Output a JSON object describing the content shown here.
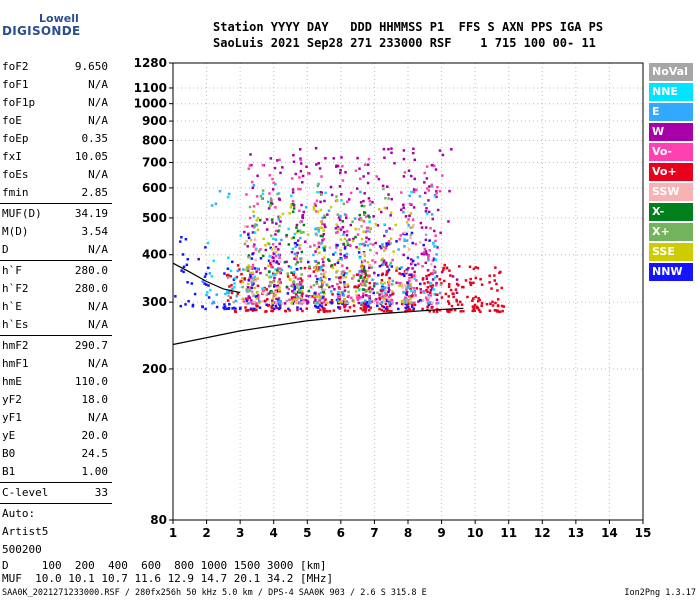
{
  "logo": {
    "line1": "Lowell",
    "line2": "DIGISONDE"
  },
  "header": {
    "line1": "Station YYYY DAY   DDD HHMMSS P1  FFS S AXN PPS IGA PS",
    "line2": "SaoLuis 2021 Sep28 271 233000 RSF    1 715 100 00- 11"
  },
  "params": {
    "group1": [
      {
        "k": "foF2",
        "v": "9.650"
      },
      {
        "k": "foF1",
        "v": "N/A"
      },
      {
        "k": "foF1p",
        "v": "N/A"
      },
      {
        "k": "foE",
        "v": "N/A"
      },
      {
        "k": "foEp",
        "v": "0.35"
      },
      {
        "k": "fxI",
        "v": "10.05"
      },
      {
        "k": "foEs",
        "v": "N/A"
      },
      {
        "k": "fmin",
        "v": "2.85"
      }
    ],
    "group2": [
      {
        "k": "MUF(D)",
        "v": "34.19"
      },
      {
        "k": "M(D)",
        "v": "3.54"
      },
      {
        "k": "D",
        "v": "N/A"
      }
    ],
    "group3": [
      {
        "k": "h`F",
        "v": "280.0"
      },
      {
        "k": "h`F2",
        "v": "280.0"
      },
      {
        "k": "h`E",
        "v": "N/A"
      },
      {
        "k": "h`Es",
        "v": "N/A"
      }
    ],
    "group4": [
      {
        "k": "hmF2",
        "v": "290.7"
      },
      {
        "k": "hmF1",
        "v": "N/A"
      },
      {
        "k": "hmE",
        "v": "110.0"
      },
      {
        "k": "yF2",
        "v": "18.0"
      },
      {
        "k": "yF1",
        "v": "N/A"
      },
      {
        "k": "yE",
        "v": "20.0"
      },
      {
        "k": "B0",
        "v": "24.5"
      },
      {
        "k": "B1",
        "v": "1.00"
      }
    ],
    "group5": [
      {
        "k": "C-level",
        "v": "33"
      }
    ],
    "auto": [
      "Auto:",
      "Artist5",
      "500200"
    ]
  },
  "legend": [
    {
      "label": "NoVal",
      "color": "#a6a6a6"
    },
    {
      "label": "NNE",
      "color": "#00e5ff"
    },
    {
      "label": "E",
      "color": "#33a8ff"
    },
    {
      "label": "W",
      "color": "#a800a8"
    },
    {
      "label": "Vo-",
      "color": "#ff40b0"
    },
    {
      "label": "Vo+",
      "color": "#e8001c"
    },
    {
      "label": "SSW",
      "color": "#f7b3b3"
    },
    {
      "label": "X-",
      "color": "#00801a"
    },
    {
      "label": "X+",
      "color": "#73b35c"
    },
    {
      "label": "SSE",
      "color": "#cccc00"
    },
    {
      "label": "NNW",
      "color": "#1414ff"
    }
  ],
  "footer": {
    "line1": "D     100  200  400  600  800 1000 1500 3000 [km]",
    "line2": "MUF  10.0 10.1 10.7 11.6 12.9 14.7 20.1 34.2 [MHz]",
    "line3": "SAA0K_2021271233000.RSF / 280fx256h 50 kHz 5.0 km / DPS-4 SAA0K 903 / 2.6 S 315.8 E",
    "version": "Ion2Png 1.3.17"
  },
  "chart_data": {
    "type": "scatter",
    "title": "",
    "xlabel": "",
    "ylabel": "",
    "xlim": [
      1,
      15
    ],
    "ylim": [
      80,
      1280
    ],
    "y_scale": "log",
    "x_ticks": [
      1,
      2,
      3,
      4,
      5,
      6,
      7,
      8,
      9,
      10,
      11,
      12,
      13,
      14,
      15
    ],
    "y_ticks": [
      80,
      200,
      300,
      400,
      500,
      600,
      700,
      800,
      900,
      1000,
      1100,
      1280
    ],
    "grid": true,
    "legend_position": "right",
    "clusters": [
      {
        "name": "W",
        "x_range": [
          3.0,
          9.2
        ],
        "y_range": [
          300,
          770
        ],
        "color": "#a800a8",
        "density": 420
      },
      {
        "name": "Vo+",
        "x_range": [
          2.8,
          10.8
        ],
        "y_range": [
          285,
          380
        ],
        "color": "#e8001c",
        "density": 360
      },
      {
        "name": "Vo-",
        "x_range": [
          3.0,
          9.0
        ],
        "y_range": [
          300,
          720
        ],
        "color": "#ff40b0",
        "density": 260
      },
      {
        "name": "NNW",
        "x_range": [
          1.0,
          8.5
        ],
        "y_range": [
          290,
          460
        ],
        "color": "#1414ff",
        "density": 180
      },
      {
        "name": "SSE",
        "x_range": [
          3.0,
          8.0
        ],
        "y_range": [
          300,
          560
        ],
        "color": "#cccc00",
        "density": 160
      },
      {
        "name": "E",
        "x_range": [
          2.0,
          9.0
        ],
        "y_range": [
          300,
          620
        ],
        "color": "#33a8ff",
        "density": 120
      },
      {
        "name": "NNE",
        "x_range": [
          2.0,
          9.0
        ],
        "y_range": [
          320,
          600
        ],
        "color": "#00e5ff",
        "density": 70
      },
      {
        "name": "X-",
        "x_range": [
          3.5,
          7.0
        ],
        "y_range": [
          320,
          560
        ],
        "color": "#00801a",
        "density": 60
      },
      {
        "name": "X+",
        "x_range": [
          3.0,
          7.5
        ],
        "y_range": [
          320,
          620
        ],
        "color": "#73b35c",
        "density": 70
      },
      {
        "name": "SSW",
        "x_range": [
          3.0,
          8.5
        ],
        "y_range": [
          300,
          500
        ],
        "color": "#f7b3b3",
        "density": 60
      },
      {
        "name": "NoVal",
        "x_range": [
          2.0,
          9.0
        ],
        "y_range": [
          300,
          500
        ],
        "color": "#a6a6a6",
        "density": 40
      }
    ],
    "traces": [
      {
        "name": "trace-1",
        "x": [
          1.0,
          3.0,
          5.0,
          7.0,
          9.0,
          9.65
        ],
        "y": [
          232,
          252,
          268,
          279,
          287,
          289
        ]
      },
      {
        "name": "trace-2",
        "x": [
          1.0,
          1.5,
          2.0,
          2.5,
          3.0
        ],
        "y": [
          380,
          360,
          340,
          325,
          318
        ]
      }
    ]
  }
}
